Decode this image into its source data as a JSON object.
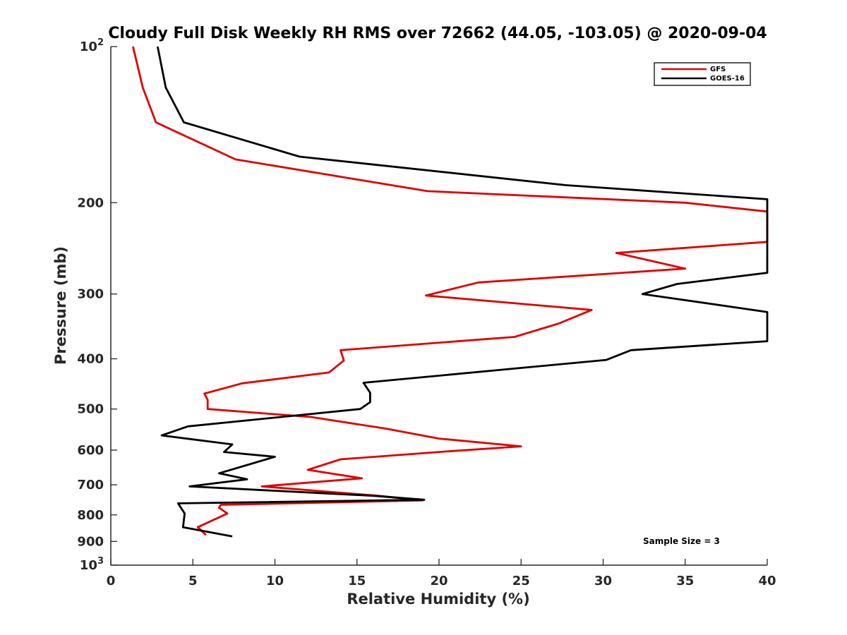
{
  "chart_data": {
    "type": "line",
    "title": "Cloudy Full Disk Weekly RH RMS over 72662 (44.05, -103.05) @ 2020-09-04",
    "xlabel": "Relative Humidity (%)",
    "ylabel": "Pressure (mb)",
    "xlim": [
      0,
      40
    ],
    "ylim": [
      100,
      1000
    ],
    "y_scale": "log",
    "y_reversed": true,
    "grid": false,
    "legend_position": "top-right",
    "x_ticks": [
      "0",
      "5",
      "10",
      "15",
      "20",
      "25",
      "30",
      "35",
      "40"
    ],
    "x_tick_values": [
      0,
      5,
      10,
      15,
      20,
      25,
      30,
      35,
      40
    ],
    "y_ticks": [
      "200",
      "300",
      "400",
      "500",
      "600",
      "700",
      "800",
      "900"
    ],
    "y_tick_values": [
      200,
      300,
      400,
      500,
      600,
      700,
      800,
      900
    ],
    "y_power_ticks": [
      {
        "value": 100,
        "base": "10",
        "exp": "2"
      },
      {
        "value": 1000,
        "base": "10",
        "exp": "3"
      }
    ],
    "annotation": "Sample Size = 3",
    "series": [
      {
        "name": "GFS",
        "color": "#e00000",
        "points": [
          {
            "x": 1.35,
            "y": 100
          },
          {
            "x": 1.95,
            "y": 120
          },
          {
            "x": 2.75,
            "y": 140
          },
          {
            "x": 7.6,
            "y": 165
          },
          {
            "x": 19.3,
            "y": 190
          },
          {
            "x": 35,
            "y": 200
          },
          {
            "x": 40,
            "y": 208
          },
          {
            "x": 40,
            "y": 208
          },
          {
            "x": 40,
            "y": 238
          },
          {
            "x": 30.8,
            "y": 250
          },
          {
            "x": 35,
            "y": 268
          },
          {
            "x": 22.4,
            "y": 285
          },
          {
            "x": 19.2,
            "y": 302
          },
          {
            "x": 29.3,
            "y": 322
          },
          {
            "x": 27.3,
            "y": 342
          },
          {
            "x": 24.6,
            "y": 363
          },
          {
            "x": 14,
            "y": 385
          },
          {
            "x": 14.2,
            "y": 403
          },
          {
            "x": 13.3,
            "y": 425
          },
          {
            "x": 8,
            "y": 446
          },
          {
            "x": 5.7,
            "y": 467
          },
          {
            "x": 5.9,
            "y": 480
          },
          {
            "x": 5.9,
            "y": 500
          },
          {
            "x": 12.2,
            "y": 518
          },
          {
            "x": 16.7,
            "y": 545
          },
          {
            "x": 20,
            "y": 570
          },
          {
            "x": 25,
            "y": 590
          },
          {
            "x": 20,
            "y": 605
          },
          {
            "x": 14,
            "y": 625
          },
          {
            "x": 12,
            "y": 655
          },
          {
            "x": 15.3,
            "y": 680
          },
          {
            "x": 9.2,
            "y": 705
          },
          {
            "x": 16.3,
            "y": 735
          },
          {
            "x": 19,
            "y": 750
          },
          {
            "x": 6.7,
            "y": 765
          },
          {
            "x": 6.6,
            "y": 775
          },
          {
            "x": 7.1,
            "y": 795
          },
          {
            "x": 5.3,
            "y": 845
          },
          {
            "x": 5.8,
            "y": 875
          }
        ]
      },
      {
        "name": "GOES-16",
        "color": "#000000",
        "points": [
          {
            "x": 2.85,
            "y": 100
          },
          {
            "x": 3.35,
            "y": 120
          },
          {
            "x": 4.45,
            "y": 140
          },
          {
            "x": 11.5,
            "y": 163
          },
          {
            "x": 27.7,
            "y": 185
          },
          {
            "x": 40,
            "y": 197
          },
          {
            "x": 40,
            "y": 273
          },
          {
            "x": 34.5,
            "y": 287
          },
          {
            "x": 32.4,
            "y": 300
          },
          {
            "x": 40,
            "y": 325
          },
          {
            "x": 40,
            "y": 370
          },
          {
            "x": 31.7,
            "y": 385
          },
          {
            "x": 30.2,
            "y": 402
          },
          {
            "x": 15.4,
            "y": 445
          },
          {
            "x": 15.8,
            "y": 465
          },
          {
            "x": 15.8,
            "y": 485
          },
          {
            "x": 15.2,
            "y": 500
          },
          {
            "x": 4.7,
            "y": 540
          },
          {
            "x": 3.1,
            "y": 562
          },
          {
            "x": 7.4,
            "y": 585
          },
          {
            "x": 6.9,
            "y": 605
          },
          {
            "x": 10,
            "y": 618
          },
          {
            "x": 6.6,
            "y": 665
          },
          {
            "x": 8.3,
            "y": 683
          },
          {
            "x": 4.8,
            "y": 705
          },
          {
            "x": 16,
            "y": 735
          },
          {
            "x": 19.1,
            "y": 748
          },
          {
            "x": 4.1,
            "y": 760
          },
          {
            "x": 4.5,
            "y": 795
          },
          {
            "x": 4.4,
            "y": 845
          },
          {
            "x": 7.4,
            "y": 880
          }
        ]
      }
    ]
  }
}
